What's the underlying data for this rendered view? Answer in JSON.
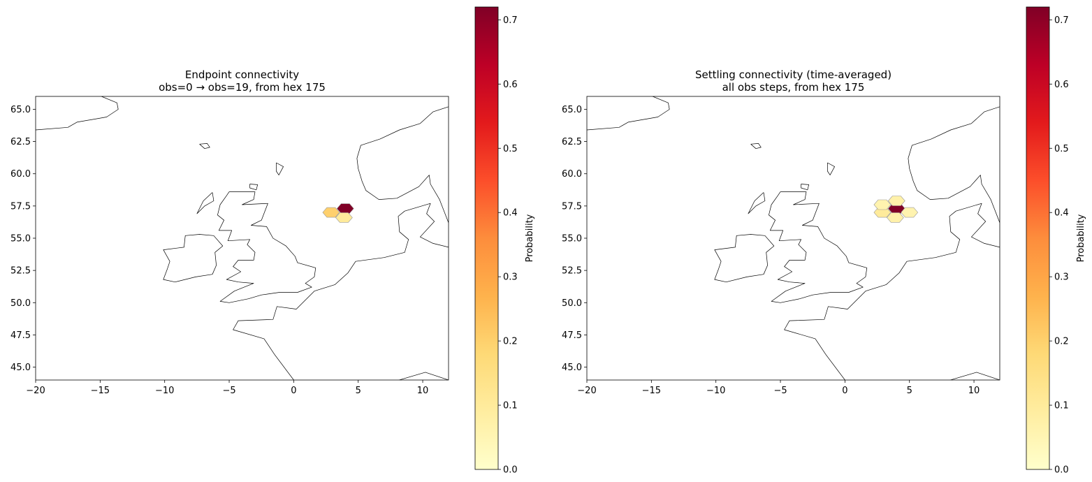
{
  "figure": {
    "panels": [
      {
        "title_line1": "Endpoint connectivity",
        "title_line2": "obs=0 → obs=19, from hex 175",
        "colorbar_label": "Probability"
      },
      {
        "title_line1": "Settling connectivity (time-averaged)",
        "title_line2": "all obs steps, from hex 175",
        "colorbar_label": "Probability"
      }
    ]
  },
  "chart_data": [
    {
      "type": "heatmap",
      "title": "Endpoint connectivity\nobs=0 → obs=19, from hex 175",
      "xlim": [
        -20,
        12
      ],
      "ylim": [
        44,
        66
      ],
      "xticks": [
        "−20",
        "−15",
        "−10",
        "−5",
        "0",
        "5",
        "10"
      ],
      "yticks": [
        "45.0",
        "47.5",
        "50.0",
        "52.5",
        "55.0",
        "57.5",
        "60.0",
        "62.5",
        "65.0"
      ],
      "colorbar": {
        "label": "Probability",
        "range": [
          0,
          0.72
        ],
        "ticks": [
          "0.0",
          "0.1",
          "0.2",
          "0.3",
          "0.4",
          "0.5",
          "0.6",
          "0.7"
        ],
        "colormap": "YlOrRd"
      },
      "hexes": [
        {
          "lon": 4.0,
          "lat": 57.3,
          "value": 0.72
        },
        {
          "lon": 2.9,
          "lat": 57.0,
          "value": 0.2
        },
        {
          "lon": 3.9,
          "lat": 56.6,
          "value": 0.1
        }
      ]
    },
    {
      "type": "heatmap",
      "title": "Settling connectivity (time-averaged)\nall obs steps, from hex 175",
      "xlim": [
        -20,
        12
      ],
      "ylim": [
        44,
        66
      ],
      "xticks": [
        "−20",
        "−15",
        "−10",
        "−5",
        "0",
        "5",
        "10"
      ],
      "yticks": [
        "45.0",
        "47.5",
        "50.0",
        "52.5",
        "55.0",
        "57.5",
        "60.0",
        "62.5",
        "65.0"
      ],
      "colorbar": {
        "label": "Probability",
        "range": [
          0,
          0.72
        ],
        "ticks": [
          "0.0",
          "0.1",
          "0.2",
          "0.3",
          "0.4",
          "0.5",
          "0.6",
          "0.7"
        ],
        "colormap": "YlOrRd"
      },
      "hexes": [
        {
          "lon": 4.0,
          "lat": 57.3,
          "value": 0.72
        },
        {
          "lon": 2.9,
          "lat": 57.0,
          "value": 0.1
        },
        {
          "lon": 3.9,
          "lat": 56.6,
          "value": 0.07
        },
        {
          "lon": 5.0,
          "lat": 57.0,
          "value": 0.06
        },
        {
          "lon": 2.9,
          "lat": 57.6,
          "value": 0.06
        },
        {
          "lon": 4.0,
          "lat": 57.9,
          "value": 0.07
        }
      ]
    }
  ],
  "colors": {
    "background": "#ffffff",
    "coastline": "#000000",
    "hex_edge": "#999999",
    "colormap_stops": [
      "#ffffcc",
      "#ffeda0",
      "#fed976",
      "#feb24c",
      "#fd8d3c",
      "#fc4e2a",
      "#e31a1c",
      "#bd0026",
      "#800026"
    ]
  }
}
